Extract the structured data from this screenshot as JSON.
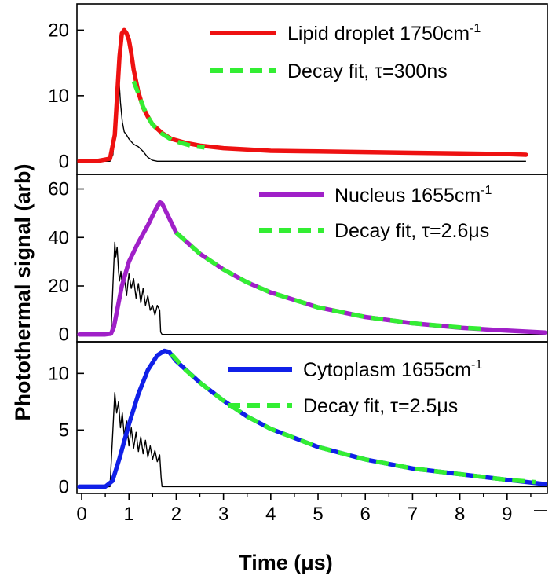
{
  "chart_data": {
    "type": "line",
    "xlabel": "Time (μs)",
    "ylabel": "Photothermal signal (arb)",
    "x_ticks": [
      "0",
      "1",
      "2",
      "3",
      "4",
      "5",
      "6",
      "7",
      "8",
      "9"
    ],
    "xlim": [
      -0.1,
      9.85
    ],
    "colors": {
      "lipid": "#ee1111",
      "nucleus": "#a020c8",
      "cytoplasm": "#1020e8",
      "fit": "#33ee33",
      "pulse": "#000000"
    },
    "panels": [
      {
        "id": "lipid",
        "ylim": [
          -2,
          24
        ],
        "y_ticks": [
          0,
          10,
          20
        ],
        "y_tick_labels": [
          "0",
          "10",
          "20"
        ],
        "legend": [
          {
            "label": "Lipid droplet 1750cm",
            "superscript": "-1",
            "style": "solid",
            "color": "#ee1111"
          },
          {
            "label": "Decay fit, τ=300ns",
            "style": "dashed",
            "color": "#33ee33"
          }
        ],
        "signal": {
          "x": [
            -0.05,
            0.3,
            0.6,
            0.7,
            0.75,
            0.8,
            0.85,
            0.9,
            0.95,
            1.0,
            1.05,
            1.1,
            1.2,
            1.3,
            1.4,
            1.5,
            1.7,
            1.9,
            2.2,
            2.5,
            3.0,
            3.5,
            4.0,
            5.0,
            6.0,
            7.0,
            8.0,
            9.0,
            9.4
          ],
          "y": [
            0,
            0,
            0.4,
            4,
            10,
            16,
            19.5,
            20,
            19.5,
            18.5,
            16.5,
            14,
            10.5,
            8.2,
            6.8,
            5.6,
            4.3,
            3.4,
            2.8,
            2.4,
            2.0,
            1.8,
            1.6,
            1.5,
            1.4,
            1.3,
            1.2,
            1.1,
            1.0
          ]
        },
        "fit": {
          "x": [
            1.1,
            1.2,
            1.3,
            1.4,
            1.5,
            1.7,
            1.9,
            2.1,
            2.3,
            2.6
          ],
          "y": [
            12.2,
            10.3,
            8.3,
            6.8,
            5.6,
            4.2,
            3.3,
            2.8,
            2.4,
            2.1
          ]
        },
        "pulse": {
          "x": [
            -0.05,
            0.6,
            0.66,
            0.7,
            0.74,
            0.78,
            0.82,
            0.86,
            0.9,
            0.95,
            1.0,
            1.05,
            1.1,
            1.2,
            1.3,
            1.4,
            1.5,
            1.6,
            2.0,
            9.4
          ],
          "y": [
            0,
            0,
            1,
            4,
            11,
            13.5,
            9,
            6,
            4.5,
            4,
            3.4,
            3.0,
            2.6,
            2.2,
            1.5,
            0.6,
            0.15,
            0,
            0,
            0
          ]
        }
      },
      {
        "id": "nucleus",
        "ylim": [
          -3,
          66
        ],
        "y_ticks": [
          0,
          20,
          40,
          60
        ],
        "y_tick_labels": [
          "0",
          "20",
          "40",
          "60"
        ],
        "legend": [
          {
            "label": "Nucleus 1655cm",
            "superscript": "-1",
            "style": "solid",
            "color": "#a020c8"
          },
          {
            "label": "Decay fit, τ=2.6μs",
            "style": "dashed",
            "color": "#33ee33"
          }
        ],
        "signal": {
          "x": [
            -0.05,
            0.5,
            0.62,
            0.68,
            0.75,
            0.85,
            1.0,
            1.2,
            1.4,
            1.55,
            1.65,
            1.7,
            1.8,
            2.0,
            2.5,
            3.0,
            3.5,
            4.0,
            5.0,
            6.0,
            7.0,
            8.0,
            9.0,
            9.8
          ],
          "y": [
            0,
            0,
            0.3,
            3,
            10,
            20,
            30,
            38,
            45,
            51,
            54.5,
            54,
            50,
            42,
            33.3,
            26.8,
            21.5,
            17.3,
            11.2,
            7.2,
            4.6,
            2.8,
            1.6,
            0.8
          ]
        },
        "fit": {
          "x": [
            2.0,
            2.5,
            3.0,
            3.5,
            4.0,
            5.0,
            6.0,
            7.0,
            8.0,
            8.5
          ],
          "y": [
            42,
            33.3,
            26.8,
            21.5,
            17.3,
            11.2,
            7.2,
            4.6,
            2.9,
            2.3
          ]
        },
        "pulse": {
          "x": [
            -0.05,
            0.62,
            0.66,
            0.7,
            0.72,
            0.75,
            0.78,
            0.8,
            0.83,
            0.86,
            0.9,
            0.95,
            1.0,
            1.05,
            1.1,
            1.15,
            1.2,
            1.25,
            1.3,
            1.35,
            1.4,
            1.45,
            1.5,
            1.55,
            1.6,
            1.65,
            1.67,
            1.7,
            9.8
          ],
          "y": [
            0,
            0,
            20,
            38,
            32,
            36,
            26,
            22,
            26,
            20,
            24,
            16,
            25,
            19,
            23,
            15,
            21,
            13,
            19,
            12,
            16,
            10,
            12,
            8,
            12,
            10,
            1,
            0,
            0
          ]
        }
      },
      {
        "id": "cytoplasm",
        "ylim": [
          -0.6,
          12.8
        ],
        "y_ticks": [
          0,
          5,
          10
        ],
        "y_tick_labels": [
          "0",
          "5",
          "10"
        ],
        "legend": [
          {
            "label": "Cytoplasm 1655cm",
            "superscript": "-1",
            "style": "solid",
            "color": "#1020e8"
          },
          {
            "label": "Decay fit, τ=2.5μs",
            "style": "dashed",
            "color": "#33ee33"
          }
        ],
        "signal": {
          "x": [
            -0.05,
            0.5,
            0.65,
            0.8,
            1.0,
            1.2,
            1.4,
            1.6,
            1.75,
            1.85,
            2.0,
            2.5,
            3.0,
            3.5,
            4.0,
            5.0,
            6.0,
            7.0,
            8.0,
            9.0,
            9.85
          ],
          "y": [
            0,
            0,
            0.5,
            2.5,
            5.5,
            8.2,
            10.3,
            11.6,
            12,
            11.9,
            11.1,
            9.2,
            7.6,
            6.2,
            5.1,
            3.5,
            2.4,
            1.6,
            1.1,
            0.6,
            0.2
          ]
        },
        "fit": {
          "x": [
            1.9,
            2.2,
            2.5,
            3.0,
            3.5,
            4.0,
            5.0,
            6.0,
            7.0,
            8.0,
            9.0,
            9.6
          ],
          "y": [
            11.7,
            10.3,
            9.2,
            7.6,
            6.2,
            5.1,
            3.5,
            2.4,
            1.6,
            1.1,
            0.6,
            0.4
          ]
        },
        "pulse": {
          "x": [
            -0.05,
            0.6,
            0.66,
            0.7,
            0.74,
            0.78,
            0.82,
            0.86,
            0.9,
            0.95,
            1.0,
            1.05,
            1.1,
            1.15,
            1.2,
            1.25,
            1.3,
            1.35,
            1.4,
            1.45,
            1.5,
            1.55,
            1.6,
            1.65,
            1.68,
            1.7,
            9.85
          ],
          "y": [
            0,
            0,
            5,
            8.3,
            6.5,
            7.5,
            5.2,
            6.5,
            4.5,
            5.8,
            3.6,
            5.2,
            3.4,
            4.8,
            3.1,
            4.4,
            2.9,
            4.1,
            2.6,
            3.6,
            2.4,
            3.2,
            2.2,
            2.8,
            0.8,
            0,
            0
          ]
        }
      }
    ]
  }
}
